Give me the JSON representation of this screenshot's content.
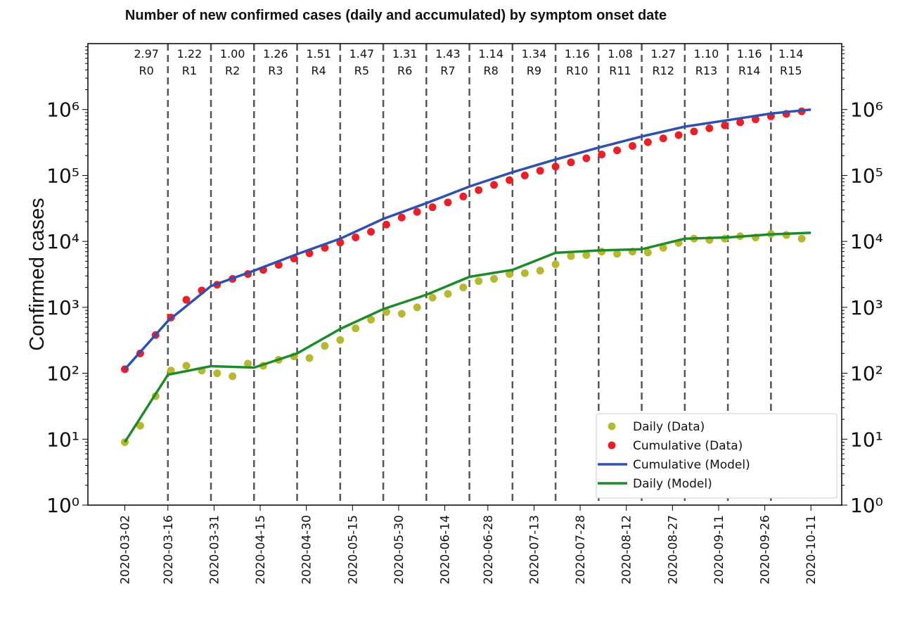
{
  "chart_data": {
    "type": "scatter-line",
    "title": "Number of new confirmed cases (daily and accumulated) by symptom onset date",
    "y_label": "Confirmed cases",
    "log_y": true,
    "legend": "lower right",
    "xlim": [
      "2020-02-19",
      "2020-10-21"
    ],
    "xticks": [
      "2020-03-02",
      "2020-03-16",
      "2020-03-31",
      "2020-04-15",
      "2020-04-30",
      "2020-05-15",
      "2020-05-30",
      "2020-06-14",
      "2020-06-28",
      "2020-07-13",
      "2020-07-28",
      "2020-08-12",
      "2020-08-27",
      "2020-09-11",
      "2020-09-26",
      "2020-10-11"
    ],
    "ylim": [
      1,
      10000000
    ],
    "yticks": [
      {
        "value": 1,
        "label": "10⁰"
      },
      {
        "value": 10,
        "label": "10¹"
      },
      {
        "value": 100,
        "label": "10²"
      },
      {
        "value": 1000,
        "label": "10³"
      },
      {
        "value": 10000,
        "label": "10⁴"
      },
      {
        "value": 100000,
        "label": "10⁵"
      },
      {
        "value": 1000000,
        "label": "10⁶"
      }
    ],
    "regions": {
      "labels": [
        "R0",
        "R1",
        "R2",
        "R3",
        "R4",
        "R5",
        "R6",
        "R7",
        "R8",
        "R9",
        "R10",
        "R11",
        "R12",
        "R13",
        "R14",
        "R15"
      ],
      "values": [
        2.97,
        1.22,
        1.0,
        1.26,
        1.51,
        1.47,
        1.31,
        1.43,
        1.14,
        1.34,
        1.16,
        1.08,
        1.27,
        1.1,
        1.16,
        1.14
      ],
      "value_labels": [
        "2.97",
        "1.22",
        "1.00",
        "1.26",
        "1.51",
        "1.47",
        "1.31",
        "1.43",
        "1.14",
        "1.34",
        "1.16",
        "1.08",
        "1.27",
        "1.10",
        "1.16",
        "1.14"
      ],
      "bounds": [
        "2020-03-02",
        "2020-03-16",
        "2020-03-30",
        "2020-04-13",
        "2020-04-27",
        "2020-05-11",
        "2020-05-25",
        "2020-06-08",
        "2020-06-22",
        "2020-07-06",
        "2020-07-20",
        "2020-08-03",
        "2020-08-17",
        "2020-08-31",
        "2020-09-14",
        "2020-09-28",
        "2020-10-11"
      ]
    },
    "series": [
      {
        "name": "Daily (Data)",
        "kind": "points",
        "color": "#b8b830",
        "x": [
          "2020-03-02",
          "2020-03-07",
          "2020-03-12",
          "2020-03-17",
          "2020-03-22",
          "2020-03-27",
          "2020-04-01",
          "2020-04-06",
          "2020-04-11",
          "2020-04-16",
          "2020-04-21",
          "2020-04-26",
          "2020-05-01",
          "2020-05-06",
          "2020-05-11",
          "2020-05-16",
          "2020-05-21",
          "2020-05-26",
          "2020-05-31",
          "2020-06-05",
          "2020-06-10",
          "2020-06-15",
          "2020-06-20",
          "2020-06-25",
          "2020-06-30",
          "2020-07-05",
          "2020-07-10",
          "2020-07-15",
          "2020-07-20",
          "2020-07-25",
          "2020-07-30",
          "2020-08-04",
          "2020-08-09",
          "2020-08-14",
          "2020-08-19",
          "2020-08-24",
          "2020-08-29",
          "2020-09-03",
          "2020-09-08",
          "2020-09-13",
          "2020-09-18",
          "2020-09-23",
          "2020-09-28",
          "2020-10-03",
          "2020-10-08"
        ],
        "values": [
          9,
          16,
          45,
          110,
          130,
          110,
          100,
          90,
          140,
          130,
          160,
          180,
          170,
          260,
          320,
          480,
          650,
          850,
          800,
          1000,
          1400,
          1600,
          2000,
          2500,
          2700,
          3200,
          3300,
          3600,
          4500,
          6000,
          6200,
          7000,
          6500,
          7000,
          6800,
          8000,
          9500,
          11000,
          10500,
          11000,
          12000,
          11500,
          13000,
          12500,
          11000
        ]
      },
      {
        "name": "Cumulative (Data)",
        "kind": "points",
        "color": "#e8202a",
        "x": [
          "2020-03-02",
          "2020-03-07",
          "2020-03-12",
          "2020-03-17",
          "2020-03-22",
          "2020-03-27",
          "2020-04-01",
          "2020-04-06",
          "2020-04-11",
          "2020-04-16",
          "2020-04-21",
          "2020-04-26",
          "2020-05-01",
          "2020-05-06",
          "2020-05-11",
          "2020-05-16",
          "2020-05-21",
          "2020-05-26",
          "2020-05-31",
          "2020-06-05",
          "2020-06-10",
          "2020-06-15",
          "2020-06-20",
          "2020-06-25",
          "2020-06-30",
          "2020-07-05",
          "2020-07-10",
          "2020-07-15",
          "2020-07-20",
          "2020-07-25",
          "2020-07-30",
          "2020-08-04",
          "2020-08-09",
          "2020-08-14",
          "2020-08-19",
          "2020-08-24",
          "2020-08-29",
          "2020-09-03",
          "2020-09-08",
          "2020-09-13",
          "2020-09-18",
          "2020-09-23",
          "2020-09-28",
          "2020-10-03",
          "2020-10-08"
        ],
        "values": [
          115,
          200,
          380,
          700,
          1300,
          1800,
          2200,
          2700,
          3200,
          3700,
          4400,
          5500,
          6600,
          8000,
          9600,
          11500,
          14000,
          18000,
          23000,
          28000,
          33000,
          39000,
          48000,
          60000,
          72000,
          85000,
          100000,
          118000,
          136000,
          158000,
          182000,
          208000,
          240000,
          280000,
          320000,
          365000,
          410000,
          465000,
          520000,
          575000,
          640000,
          710000,
          790000,
          860000,
          940000
        ]
      },
      {
        "name": "Cumulative (Model)",
        "kind": "line",
        "color": "#3050b0",
        "x": [
          "2020-03-02",
          "2020-03-16",
          "2020-03-30",
          "2020-04-13",
          "2020-04-27",
          "2020-05-11",
          "2020-05-25",
          "2020-06-08",
          "2020-06-22",
          "2020-07-06",
          "2020-07-20",
          "2020-08-03",
          "2020-08-17",
          "2020-08-31",
          "2020-09-14",
          "2020-09-28",
          "2020-10-11"
        ],
        "values": [
          115,
          620,
          2100,
          3600,
          6400,
          11000,
          22000,
          38000,
          68000,
          112000,
          175000,
          265000,
          390000,
          550000,
          690000,
          870000,
          1000000
        ]
      },
      {
        "name": "Daily (Model)",
        "kind": "line",
        "color": "#1e8a2a",
        "x": [
          "2020-03-02",
          "2020-03-16",
          "2020-03-30",
          "2020-04-13",
          "2020-04-27",
          "2020-05-11",
          "2020-05-25",
          "2020-06-08",
          "2020-06-22",
          "2020-07-06",
          "2020-07-20",
          "2020-08-03",
          "2020-08-17",
          "2020-08-31",
          "2020-09-14",
          "2020-09-28",
          "2020-10-11"
        ],
        "values": [
          9,
          95,
          128,
          122,
          200,
          470,
          940,
          1550,
          2900,
          3700,
          6700,
          7300,
          7600,
          11000,
          11500,
          12800,
          13500
        ]
      }
    ]
  }
}
